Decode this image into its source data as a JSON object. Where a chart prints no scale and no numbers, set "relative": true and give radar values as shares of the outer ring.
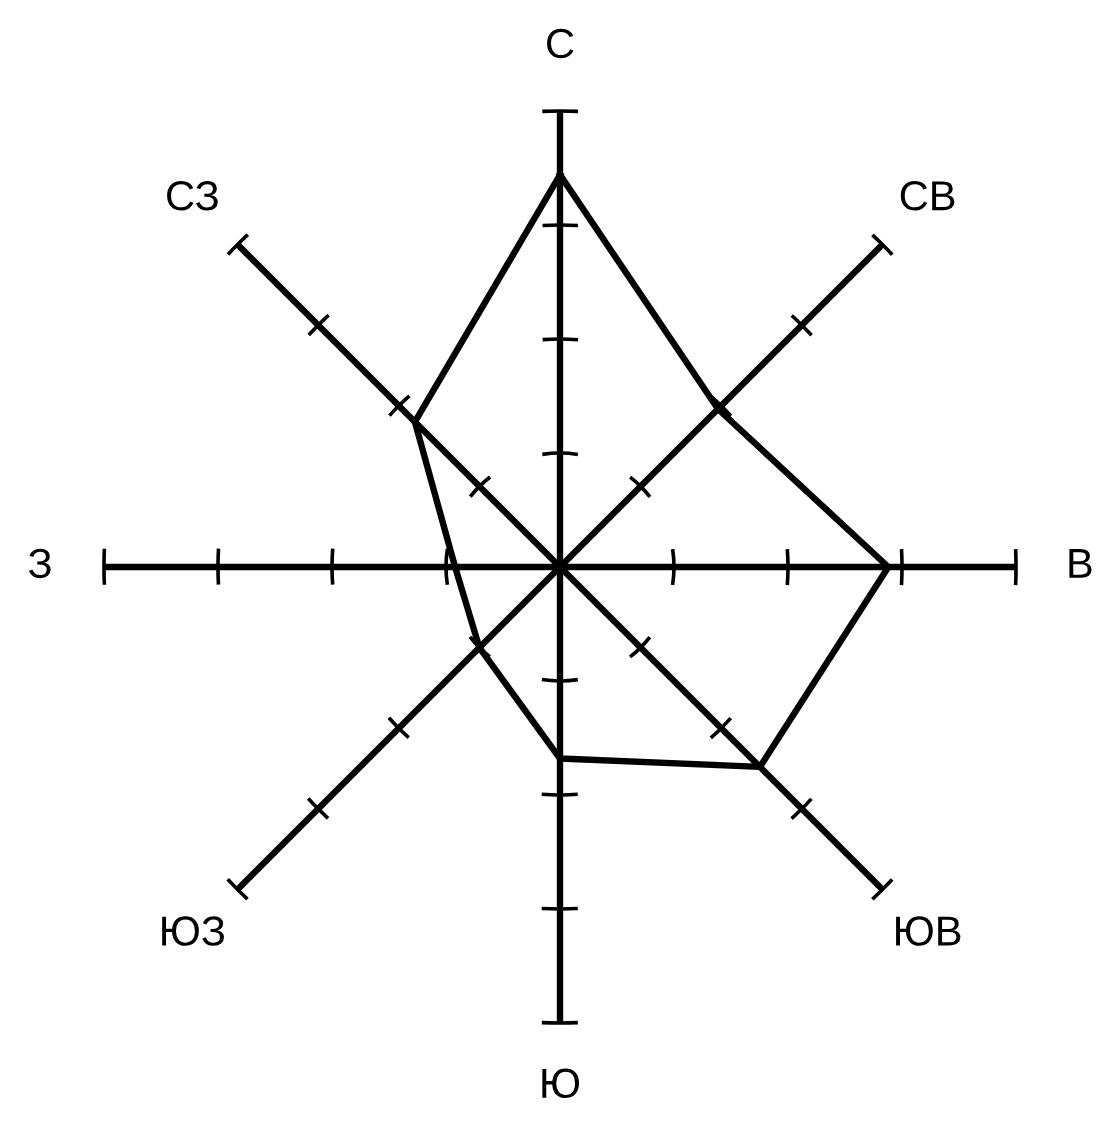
{
  "chart_data": {
    "type": "radar",
    "relative": true,
    "categories": [
      "С",
      "СВ",
      "В",
      "ЮВ",
      "Ю",
      "ЮЗ",
      "З",
      "СЗ"
    ],
    "series": [
      {
        "color": "#000000",
        "values": [
          0.86,
          0.49,
          0.72,
          0.62,
          0.42,
          0.25,
          0.23,
          0.45
        ]
      }
    ],
    "grid": true,
    "line_style": "solid"
  }
}
